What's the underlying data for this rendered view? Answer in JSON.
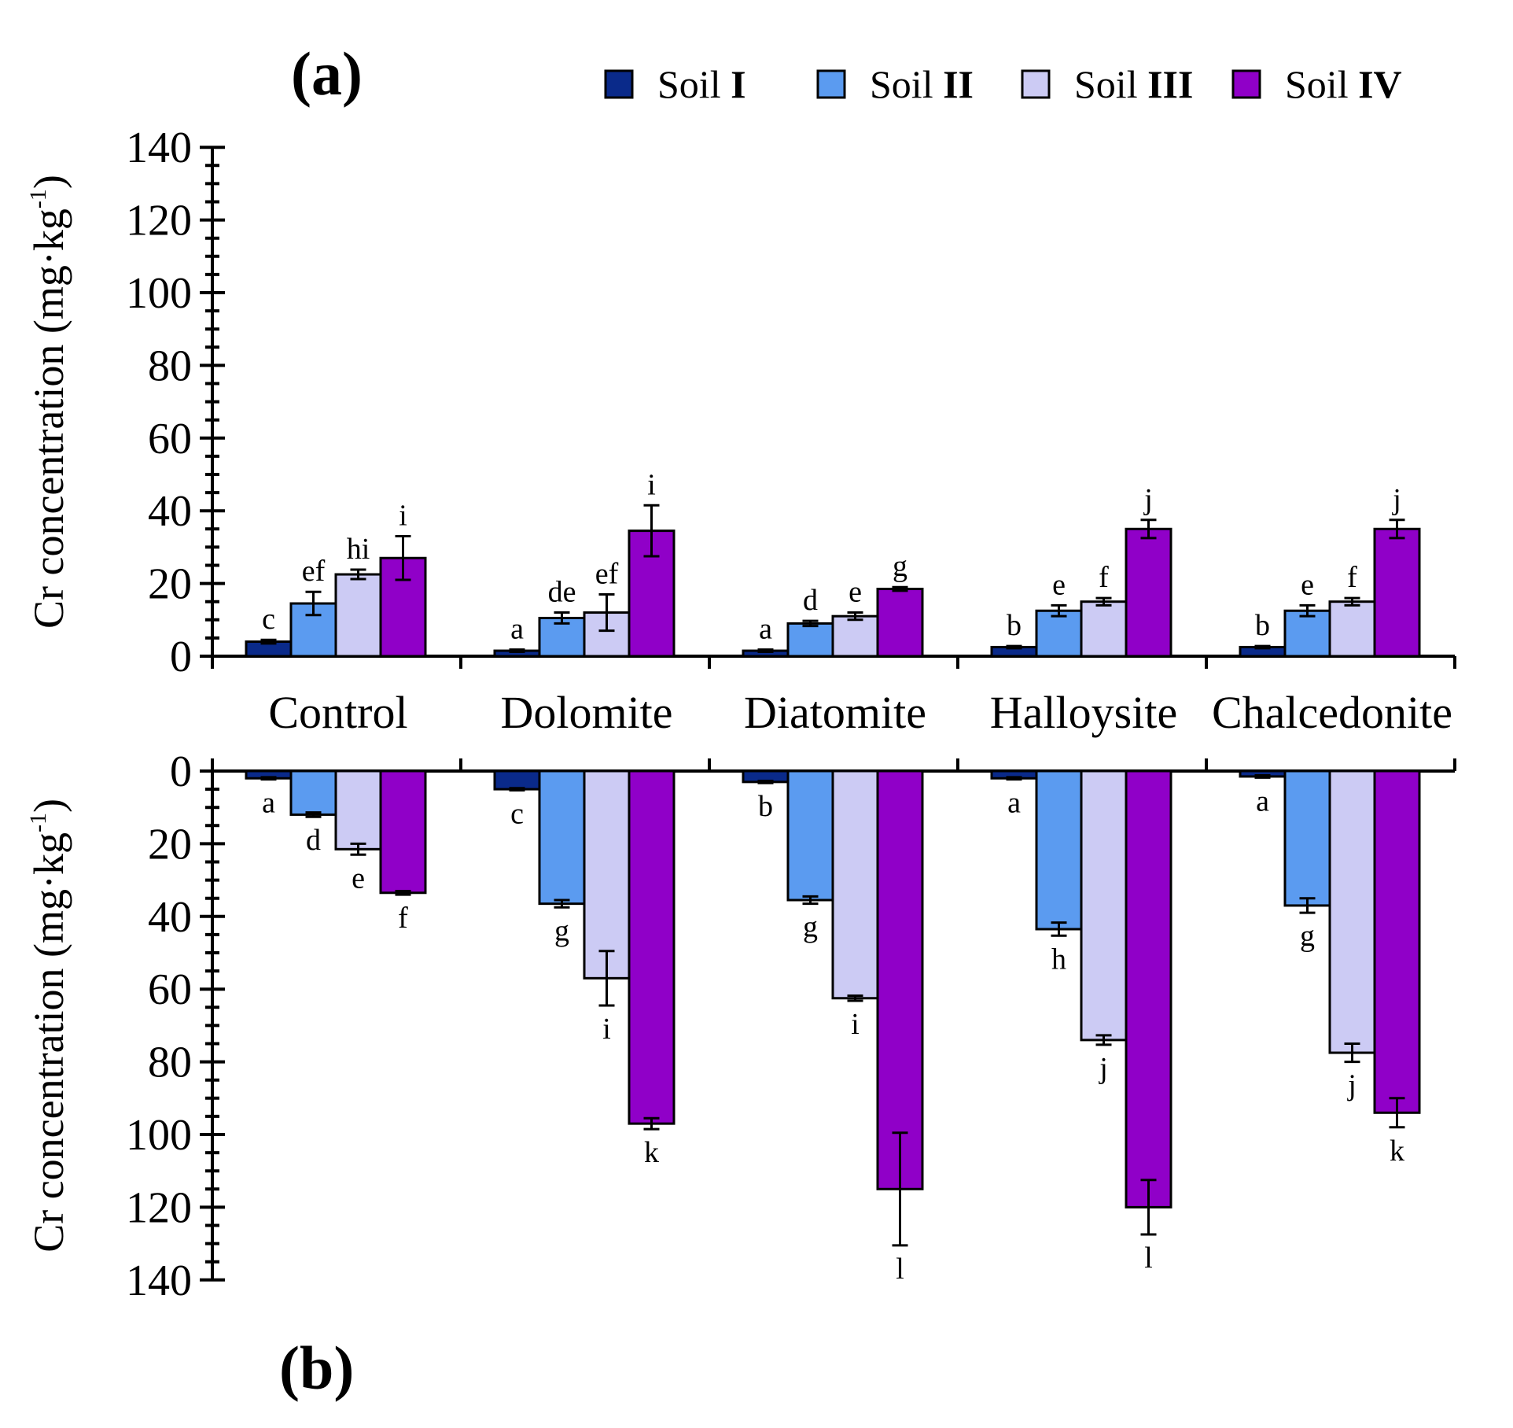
{
  "colors": {
    "Soil I": "#0a2a8a",
    "Soil II": "#5b9bf0",
    "Soil III": "#cccbf4",
    "Soil IV": "#9000c8"
  },
  "legend": [
    {
      "base": "Soil ",
      "roman": "I"
    },
    {
      "base": "Soil ",
      "roman": "II"
    },
    {
      "base": "Soil ",
      "roman": "III"
    },
    {
      "base": "Soil ",
      "roman": "IV"
    }
  ],
  "chart_data": [
    {
      "type": "bar",
      "panel": "(a)",
      "ylabel": "Cr concentration (mg·kg",
      "ylabel_sup": "-1",
      "ylabel_close": ")",
      "ylim": [
        0,
        140
      ],
      "yticks": [
        0,
        20,
        40,
        60,
        80,
        100,
        120,
        140
      ],
      "categories": [
        "Control",
        "Dolomite",
        "Diatomite",
        "Halloysite",
        "Chalcedonite"
      ],
      "series": [
        {
          "name": "Soil I",
          "values": [
            4,
            1.5,
            1.5,
            2.5,
            2.5
          ],
          "errors": [
            0.5,
            0.3,
            0.3,
            0.3,
            0.3
          ],
          "letters": [
            "c",
            "a",
            "a",
            "b",
            "b"
          ]
        },
        {
          "name": "Soil II",
          "values": [
            14.5,
            10.5,
            9,
            12.5,
            12.5
          ],
          "errors": [
            3.2,
            1.5,
            0.7,
            1.5,
            1.5
          ],
          "letters": [
            "ef",
            "de",
            "d",
            "e",
            "e"
          ]
        },
        {
          "name": "Soil III",
          "values": [
            22.5,
            12,
            11,
            15,
            15
          ],
          "errors": [
            1.3,
            5,
            1,
            1,
            1
          ],
          "letters": [
            "hi",
            "ef",
            "e",
            "f",
            "f"
          ]
        },
        {
          "name": "Soil IV",
          "values": [
            27,
            34.5,
            18.5,
            35,
            35
          ],
          "errors": [
            6,
            7,
            0.5,
            2.5,
            2.5
          ],
          "letters": [
            "i",
            "i",
            "g",
            "j",
            "j"
          ]
        }
      ]
    },
    {
      "type": "bar",
      "panel": "(b)",
      "ylabel": "Cr concentration (mg·kg",
      "ylabel_sup": "-1",
      "ylabel_close": ")",
      "ylim": [
        0,
        140
      ],
      "inverted": true,
      "yticks": [
        0,
        20,
        40,
        60,
        80,
        100,
        120,
        140
      ],
      "categories": [
        "Control",
        "Dolomite",
        "Diatomite",
        "Halloysite",
        "Chalcedonite"
      ],
      "series": [
        {
          "name": "Soil I",
          "values": [
            2,
            5,
            3,
            2,
            1.5
          ],
          "errors": [
            0.3,
            0.3,
            0.3,
            0.3,
            0.3
          ],
          "letters": [
            "a",
            "c",
            "b",
            "a",
            "a"
          ]
        },
        {
          "name": "Soil II",
          "values": [
            12,
            36.5,
            35.5,
            43.5,
            37
          ],
          "errors": [
            0.6,
            1,
            1,
            1.8,
            2
          ],
          "letters": [
            "d",
            "g",
            "g",
            "h",
            "g"
          ]
        },
        {
          "name": "Soil III",
          "values": [
            21.5,
            57,
            62.5,
            74,
            77.5
          ],
          "errors": [
            1.5,
            7.5,
            0.7,
            1.3,
            2.5
          ],
          "letters": [
            "e",
            "i",
            "i",
            "j",
            "j"
          ]
        },
        {
          "name": "Soil IV",
          "values": [
            33.5,
            97,
            115,
            120,
            94
          ],
          "errors": [
            0.5,
            1.5,
            15.5,
            7.5,
            4
          ],
          "letters": [
            "f",
            "k",
            "l",
            "l",
            "k"
          ]
        }
      ]
    }
  ]
}
